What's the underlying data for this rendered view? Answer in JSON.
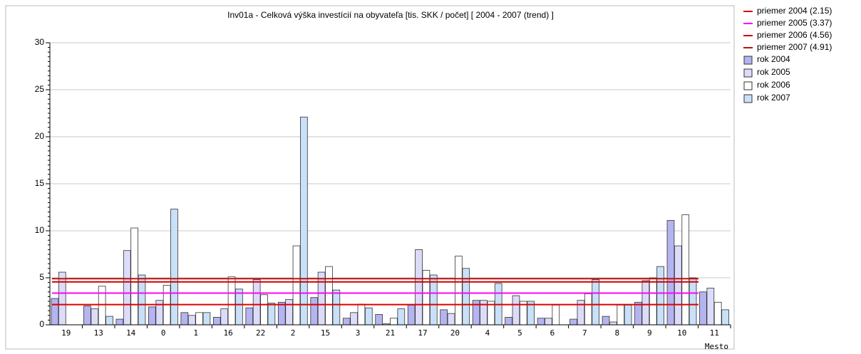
{
  "chart_data": {
    "type": "bar",
    "title": "Inv01a - Celková výška investícií na obyvateľa [tis. SKK / počet]  [ 2004 - 2007 (trend) ]",
    "x_label": "Mesto",
    "categories": [
      "19",
      "13",
      "14",
      "0",
      "1",
      "16",
      "22",
      "2",
      "15",
      "3",
      "21",
      "17",
      "20",
      "4",
      "5",
      "6",
      "7",
      "8",
      "9",
      "10",
      "11"
    ],
    "series": [
      {
        "name": "rok 2004",
        "color": "#b4b4f0",
        "values": [
          2.8,
          2.0,
          0.6,
          1.9,
          1.3,
          0.8,
          1.8,
          2.4,
          2.9,
          0.7,
          1.1,
          2.1,
          1.6,
          2.6,
          0.8,
          0.7,
          0.6,
          0.9,
          2.4,
          11.1,
          3.5
        ]
      },
      {
        "name": "rok 2005",
        "color": "#dcdcfa",
        "values": [
          5.6,
          1.7,
          7.9,
          2.6,
          1.0,
          1.7,
          4.8,
          2.7,
          5.6,
          1.3,
          0.1,
          8.0,
          1.2,
          2.6,
          3.1,
          0.7,
          2.6,
          0.3,
          4.7,
          8.4,
          3.9
        ]
      },
      {
        "name": "rok 2006",
        "color": "#ffffff",
        "values": [
          0,
          4.1,
          10.3,
          4.2,
          1.3,
          5.1,
          3.2,
          8.4,
          6.2,
          2.2,
          0.7,
          5.8,
          7.3,
          2.5,
          2.5,
          2.1,
          3.3,
          2.1,
          5.0,
          11.7,
          2.4
        ]
      },
      {
        "name": "rok 2007",
        "color": "#c8e0f8",
        "values": [
          0,
          0.9,
          5.3,
          12.3,
          1.3,
          3.8,
          2.3,
          22.1,
          3.7,
          1.8,
          1.7,
          5.3,
          6.0,
          4.4,
          2.5,
          0,
          4.8,
          2.1,
          6.2,
          5.0,
          1.6
        ]
      }
    ],
    "lines": [
      {
        "name": "priemer 2004 (2.15)",
        "color": "#dd0000",
        "value": 2.15
      },
      {
        "name": "priemer 2005 (3.37)",
        "color": "#ff00ff",
        "value": 3.37
      },
      {
        "name": "priemer 2006 (4.56)",
        "color": "#cc0000",
        "value": 4.56
      },
      {
        "name": "priemer 2007 (4.91)",
        "color": "#bb1111",
        "value": 4.91
      }
    ],
    "ylim": [
      0,
      30
    ],
    "yticks": [
      0,
      5,
      10,
      15,
      20,
      25,
      30
    ],
    "grid": true
  }
}
